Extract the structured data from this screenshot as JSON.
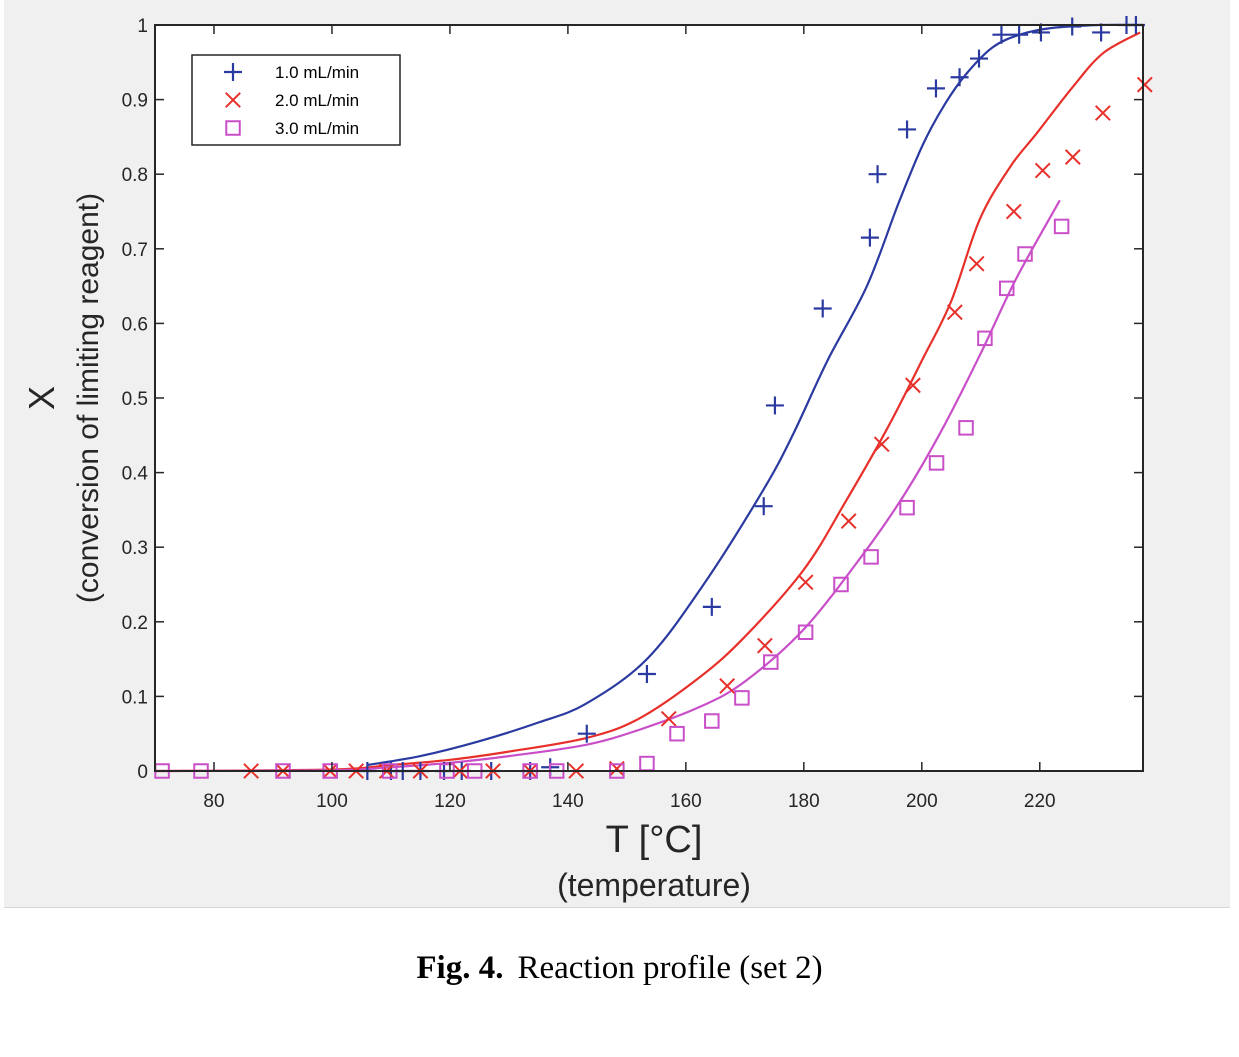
{
  "caption": {
    "number": "Fig. 4.",
    "text": "Reaction profile (set 2)"
  },
  "chart_data": {
    "type": "scatter",
    "title": "",
    "xlabel": "T [°C]",
    "xlabel_sub": "(temperature)",
    "ylabel": "X",
    "ylabel_sub": "(conversion of limiting reagent)",
    "xlim": [
      70,
      237.5
    ],
    "ylim": [
      0,
      1
    ],
    "xticks": [
      80,
      100,
      120,
      140,
      160,
      180,
      200,
      220
    ],
    "xtick_labels": [
      "80",
      "100",
      "120",
      "140",
      "160",
      "180",
      "200",
      "220"
    ],
    "yticks": [
      0,
      0.1,
      0.2,
      0.3,
      0.4,
      0.5,
      0.6,
      0.7,
      0.8,
      0.9,
      1
    ],
    "ytick_labels": [
      "0",
      "0.1",
      "0.2",
      "0.3",
      "0.4",
      "0.5",
      "0.6",
      "0.7",
      "0.8",
      "0.9",
      "1"
    ],
    "grid": false,
    "legend_position": "top-left",
    "series": [
      {
        "name": "1.0 mL/min",
        "color": "#2b3aa0",
        "marker": "plus",
        "points": [
          [
            106,
            0
          ],
          [
            110,
            0
          ],
          [
            112,
            0
          ],
          [
            115,
            0
          ],
          [
            119,
            0
          ],
          [
            122,
            0
          ],
          [
            127,
            0
          ],
          [
            133.6,
            0
          ],
          [
            137,
            0.005
          ],
          [
            143.2,
            0.05
          ],
          [
            153.4,
            0.13
          ],
          [
            164.4,
            0.22
          ],
          [
            173.2,
            0.355
          ],
          [
            175.1,
            0.49
          ],
          [
            183.2,
            0.62
          ],
          [
            191.2,
            0.715
          ],
          [
            192.5,
            0.8
          ],
          [
            197.5,
            0.86
          ],
          [
            202.4,
            0.915
          ],
          [
            206.4,
            0.93
          ],
          [
            209.7,
            0.955
          ],
          [
            213.5,
            0.987
          ],
          [
            216.5,
            0.987
          ],
          [
            220.2,
            0.99
          ],
          [
            225.5,
            0.998
          ],
          [
            230.4,
            0.99
          ],
          [
            234.7,
            1.0
          ],
          [
            236.3,
            1.0
          ]
        ],
        "fit": [
          [
            106,
            0.008
          ],
          [
            115,
            0.02
          ],
          [
            125,
            0.04
          ],
          [
            135,
            0.065
          ],
          [
            143,
            0.09
          ],
          [
            153.4,
            0.15
          ],
          [
            163,
            0.25
          ],
          [
            173,
            0.375
          ],
          [
            178.1,
            0.45
          ],
          [
            184,
            0.55
          ],
          [
            190.7,
            0.65
          ],
          [
            196,
            0.76
          ],
          [
            200.2,
            0.84
          ],
          [
            204,
            0.895
          ],
          [
            207.6,
            0.935
          ],
          [
            212,
            0.97
          ],
          [
            216.6,
            0.987
          ],
          [
            222,
            0.996
          ],
          [
            230,
            1.0
          ],
          [
            237.5,
            1.0
          ]
        ]
      },
      {
        "name": "2.0 mL/min",
        "color": "#e8302a",
        "marker": "x",
        "points": [
          [
            86.3,
            0
          ],
          [
            91.7,
            0
          ],
          [
            99.7,
            0
          ],
          [
            104.1,
            0
          ],
          [
            109.3,
            0
          ],
          [
            115,
            0
          ],
          [
            121.7,
            0
          ],
          [
            127.3,
            0
          ],
          [
            133.6,
            0
          ],
          [
            141.4,
            0
          ],
          [
            148.3,
            0.003
          ],
          [
            157.1,
            0.07
          ],
          [
            167,
            0.114
          ],
          [
            173.4,
            0.168
          ],
          [
            180.3,
            0.253
          ],
          [
            187.6,
            0.335
          ],
          [
            193.2,
            0.438
          ],
          [
            198.5,
            0.517
          ],
          [
            205.6,
            0.615
          ],
          [
            209.3,
            0.68
          ],
          [
            215.6,
            0.75
          ],
          [
            220.5,
            0.805
          ],
          [
            225.6,
            0.823
          ],
          [
            230.7,
            0.882
          ],
          [
            237.8,
            0.92
          ]
        ],
        "fit": [
          [
            70,
            0
          ],
          [
            100,
            0.002
          ],
          [
            110,
            0.008
          ],
          [
            120,
            0.015
          ],
          [
            130,
            0.026
          ],
          [
            143,
            0.044
          ],
          [
            152,
            0.07
          ],
          [
            162.4,
            0.126
          ],
          [
            170,
            0.18
          ],
          [
            180,
            0.27
          ],
          [
            187,
            0.36
          ],
          [
            194.2,
            0.46
          ],
          [
            200,
            0.55
          ],
          [
            205,
            0.63
          ],
          [
            209.8,
            0.739
          ],
          [
            215,
            0.81
          ],
          [
            219.5,
            0.855
          ],
          [
            225.6,
            0.917
          ],
          [
            230.7,
            0.962
          ],
          [
            237,
            0.99
          ]
        ]
      },
      {
        "name": "3.0 mL/min",
        "color": "#c94fc9",
        "marker": "square",
        "points": [
          [
            71.2,
            0
          ],
          [
            77.8,
            0
          ],
          [
            91.7,
            0
          ],
          [
            99.7,
            0
          ],
          [
            109.8,
            0
          ],
          [
            119.5,
            0
          ],
          [
            124.2,
            0
          ],
          [
            133.6,
            0
          ],
          [
            138.1,
            0
          ],
          [
            148.3,
            0
          ],
          [
            153.4,
            0.01
          ],
          [
            158.5,
            0.05
          ],
          [
            164.4,
            0.067
          ],
          [
            169.5,
            0.098
          ],
          [
            174.4,
            0.146
          ],
          [
            180.3,
            0.186
          ],
          [
            186.3,
            0.25
          ],
          [
            191.4,
            0.287
          ],
          [
            197.5,
            0.353
          ],
          [
            202.5,
            0.413
          ],
          [
            207.5,
            0.46
          ],
          [
            210.7,
            0.58
          ],
          [
            214.4,
            0.647
          ],
          [
            217.5,
            0.693
          ],
          [
            223.7,
            0.73
          ]
        ],
        "fit": [
          [
            70,
            0
          ],
          [
            100,
            0.001
          ],
          [
            110,
            0.005
          ],
          [
            120,
            0.011
          ],
          [
            130,
            0.02
          ],
          [
            143,
            0.035
          ],
          [
            152,
            0.055
          ],
          [
            162.4,
            0.086
          ],
          [
            170,
            0.12
          ],
          [
            180,
            0.19
          ],
          [
            190,
            0.29
          ],
          [
            197,
            0.37
          ],
          [
            203.6,
            0.46
          ],
          [
            210,
            0.56
          ],
          [
            216,
            0.66
          ],
          [
            223.4,
            0.765
          ]
        ]
      }
    ]
  }
}
